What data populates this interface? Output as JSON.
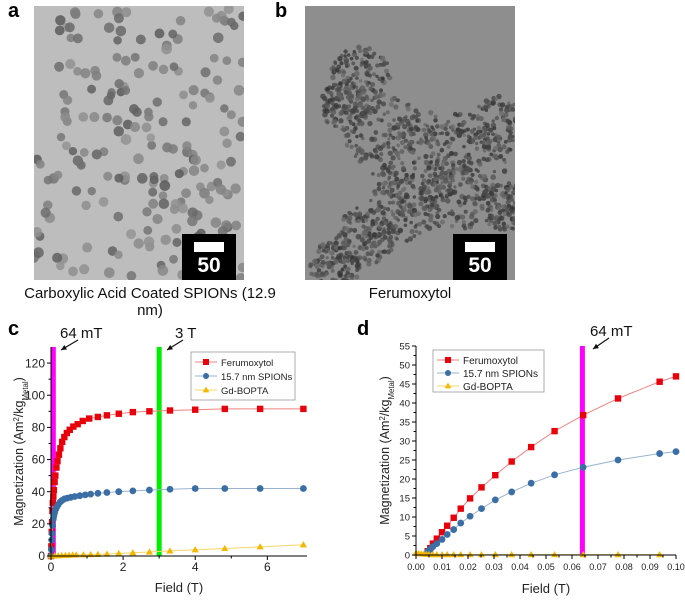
{
  "panels": {
    "a": {
      "letter": "a",
      "caption": "Carboxylic Acid Coated SPIONs (12.9 nm)",
      "scalebar": "50 nm"
    },
    "b": {
      "letter": "b",
      "caption": "Ferumoxytol",
      "scalebar": "50 nm"
    },
    "c": {
      "letter": "c",
      "annotation_1": "64 mT",
      "annotation_2": "3 T"
    },
    "d": {
      "letter": "d",
      "annotation_1": "64 mT"
    }
  },
  "colors": {
    "ferumoxytol": "#e8000b",
    "spions": "#3a6ea5",
    "gd": "#f5b800",
    "line_64mT": "#ff00ff",
    "line_3T": "#00ee00"
  },
  "chart_data": [
    {
      "type": "line",
      "panel": "c",
      "title": "",
      "xlabel": "Field (T)",
      "ylabel": "Magnetization (Am²/kg_Metal)",
      "xlim": [
        0,
        7.1
      ],
      "ylim": [
        0,
        130
      ],
      "xticks": [
        0,
        2,
        4,
        6
      ],
      "yticks": [
        0,
        20,
        40,
        60,
        80,
        100,
        120
      ],
      "legend": [
        "Ferumoxytol",
        "15.7 nm SPIONs",
        "Gd-BOPTA"
      ],
      "legend_position": "upper right",
      "vlines": [
        {
          "x": 0.064,
          "label": "64 mT",
          "color": "#ff00ff"
        },
        {
          "x": 3.0,
          "label": "3 T",
          "color": "#00ee00"
        }
      ],
      "series": [
        {
          "name": "Ferumoxytol",
          "x": [
            0.0,
            0.01,
            0.02,
            0.03,
            0.04,
            0.05,
            0.065,
            0.08,
            0.1,
            0.12,
            0.15,
            0.18,
            0.22,
            0.26,
            0.31,
            0.37,
            0.44,
            0.52,
            0.62,
            0.74,
            0.88,
            1.06,
            1.3,
            1.55,
            1.88,
            2.27,
            2.73,
            3.3,
            4.0,
            4.82,
            5.8,
            7.0
          ],
          "y": [
            0,
            6,
            15,
            21,
            28,
            33,
            37,
            41,
            46,
            50,
            55,
            59,
            63,
            67,
            71,
            74,
            76.5,
            78.5,
            80.5,
            82,
            84,
            85.5,
            86.5,
            87.5,
            88.5,
            89.5,
            90,
            90.5,
            91,
            91.5,
            91.5,
            91.5
          ]
        },
        {
          "name": "15.7 nm SPIONs",
          "x": [
            0.0,
            0.01,
            0.02,
            0.03,
            0.045,
            0.064,
            0.08,
            0.1,
            0.13,
            0.16,
            0.2,
            0.25,
            0.3,
            0.37,
            0.45,
            0.55,
            0.66,
            0.8,
            0.95,
            1.1,
            1.3,
            1.55,
            1.88,
            2.27,
            2.73,
            3.3,
            4.0,
            4.82,
            5.8,
            7.0
          ],
          "y": [
            0,
            4,
            10,
            14,
            19,
            23,
            25,
            27,
            29,
            30.5,
            32,
            33.5,
            34.5,
            35.5,
            36,
            36.5,
            37,
            37.5,
            38,
            38.5,
            39,
            39.5,
            40,
            40.5,
            41,
            41.5,
            42,
            42,
            42,
            42
          ]
        },
        {
          "name": "Gd-BOPTA",
          "x": [
            0.0,
            0.1,
            0.2,
            0.3,
            0.4,
            0.5,
            0.6,
            0.7,
            0.9,
            1.1,
            1.3,
            1.55,
            1.88,
            2.27,
            2.73,
            3.3,
            4.0,
            4.82,
            5.8,
            7.0
          ],
          "y": [
            0,
            0.1,
            0.2,
            0.3,
            0.4,
            0.5,
            0.6,
            0.7,
            0.8,
            0.9,
            1.0,
            1.2,
            1.6,
            2.0,
            2.5,
            3.2,
            3.9,
            4.7,
            5.7,
            7.0
          ]
        }
      ]
    },
    {
      "type": "line",
      "panel": "d",
      "title": "",
      "xlabel": "Field (T)",
      "ylabel": "Magnetization (Am²/kg_Metal)",
      "xlim": [
        0,
        0.1
      ],
      "ylim": [
        0,
        55
      ],
      "xticks": [
        0.0,
        0.01,
        0.02,
        0.03,
        0.04,
        0.05,
        0.06,
        0.07,
        0.08,
        0.09,
        0.1
      ],
      "xtick_labels": [
        "0.00",
        "0.01",
        "0.02",
        "0.03",
        "0.04",
        "0.05",
        "0.06",
        "0.07",
        "0.08",
        "0.09",
        "0.10"
      ],
      "yticks": [
        0,
        5,
        10,
        15,
        20,
        25,
        30,
        35,
        40,
        45,
        50,
        55
      ],
      "legend": [
        "Ferumoxytol",
        "15.7 nm SPIONs",
        "Gd-BOPTA"
      ],
      "legend_position": "upper left",
      "vlines": [
        {
          "x": 0.064,
          "label": "64 mT",
          "color": "#ff00ff"
        }
      ],
      "series": [
        {
          "name": "Ferumoxytol",
          "x": [
            0.0045,
            0.0055,
            0.0065,
            0.008,
            0.01,
            0.012,
            0.0145,
            0.0172,
            0.0208,
            0.0252,
            0.0305,
            0.0368,
            0.0443,
            0.0533,
            0.0643,
            0.0777,
            0.0937,
            0.1
          ],
          "y": [
            1.0,
            1.8,
            3.0,
            4.3,
            6.0,
            7.7,
            9.8,
            12.2,
            14.9,
            17.8,
            21.0,
            24.6,
            28.4,
            32.6,
            36.8,
            41.2,
            45.6,
            47.0
          ]
        },
        {
          "name": "15.7 nm SPIONs",
          "x": [
            0.0045,
            0.0055,
            0.0065,
            0.008,
            0.01,
            0.012,
            0.0145,
            0.0172,
            0.0208,
            0.0252,
            0.0305,
            0.0368,
            0.0443,
            0.0533,
            0.0643,
            0.0777,
            0.0937,
            0.1
          ],
          "y": [
            0.9,
            1.5,
            2.2,
            3.0,
            4.1,
            5.4,
            6.7,
            8.4,
            10.2,
            12.2,
            14.5,
            16.6,
            18.9,
            21.1,
            23.1,
            25.0,
            26.7,
            27.2
          ]
        },
        {
          "name": "Gd-BOPTA",
          "x": [
            0.0,
            0.001,
            0.002,
            0.003,
            0.004,
            0.005,
            0.0065,
            0.008,
            0.01,
            0.012,
            0.0145,
            0.0172,
            0.0208,
            0.0252,
            0.0305,
            0.0368,
            0.0443,
            0.0533,
            0.0643,
            0.0777,
            0.0937
          ],
          "y": [
            0.5,
            0.4,
            0.3,
            0.25,
            0.2,
            0.15,
            0.1,
            0.1,
            0.1,
            0.1,
            0.1,
            0.1,
            0.1,
            0.1,
            0.1,
            0.1,
            0.1,
            0.1,
            0.1,
            0.1,
            0.1
          ]
        }
      ]
    }
  ]
}
